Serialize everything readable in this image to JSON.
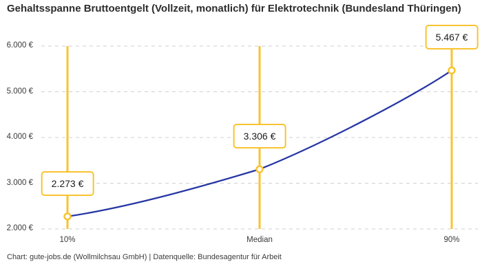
{
  "footer": "Chart: gute-jobs.de (Wollmilchsau GmbH) | Datenquelle: Bundesagentur für Arbeit",
  "colors": {
    "accent_yellow": "#F9C32F",
    "line_blue": "#2636A4",
    "grid": "#CFCFCF",
    "title_text": "#2D2D2D",
    "axis_text": "#3A3A3A",
    "marker_fill": "#FFFFFF"
  },
  "chart_data": {
    "type": "line",
    "title": "Gehaltsspanne Bruttoentgelt (Vollzeit, monatlich) für Elektrotechnik (Bundesland Thüringen)",
    "categories": [
      "10%",
      "Median",
      "90%"
    ],
    "values": [
      2273,
      3306,
      5467
    ],
    "point_labels": [
      "2.273 €",
      "3.306 €",
      "5.467 €"
    ],
    "xlabel": "",
    "ylabel": "",
    "ylim": [
      2000,
      6000
    ],
    "yticks": [
      2000,
      3000,
      4000,
      5000,
      6000
    ],
    "ytick_labels": [
      "2.000 €",
      "3.000 €",
      "4.000 €",
      "5.000 €",
      "6.000 €"
    ],
    "grid": "horizontal-dashed",
    "legend": "none",
    "annotations": "vertical yellow guide line at each category with white value box (yellow border) above an open circle marker"
  }
}
